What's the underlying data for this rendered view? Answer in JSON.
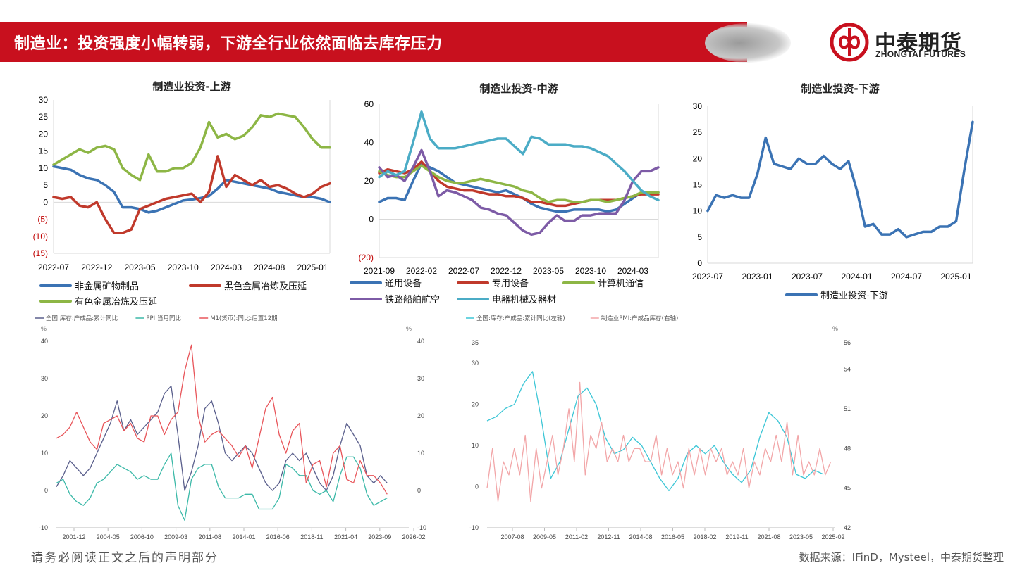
{
  "header": {
    "title": "制造业：投资强度小幅转弱，下游全行业依然面临去库存压力",
    "logo_cn": "中泰期货",
    "logo_en": "ZHONGTAI FUTURES",
    "accent_color": "#c8101e"
  },
  "footer": {
    "disclaimer": "请务必阅读正文之后的声明部分",
    "source": "数据来源：IFinD，Mysteel，中泰期货整理"
  },
  "chart_data": [
    {
      "id": "upstream",
      "type": "line",
      "title": "制造业投资-上游",
      "ylim": [
        -15,
        30
      ],
      "yticks": [
        30,
        25,
        20,
        15,
        10,
        5,
        0,
        -5,
        -10,
        -15
      ],
      "ytick_labels": [
        "30",
        "25",
        "20",
        "15",
        "10",
        "5",
        "0",
        "(5)",
        "(10)",
        "(15)"
      ],
      "negative_tick_color": "#c00000",
      "x_tick_labels": [
        "2022-07",
        "2022-12",
        "2023-05",
        "2023-10",
        "2024-03",
        "2024-08",
        "2025-01"
      ],
      "x_count": 33,
      "x_tick_index": [
        0,
        5,
        10,
        15,
        20,
        25,
        30
      ],
      "legend_position": "bottom",
      "series": [
        {
          "name": "非金属矿物制品",
          "color": "#3b73b4",
          "values": [
            10.5,
            10.0,
            9.5,
            8.0,
            7.0,
            6.5,
            5.0,
            3.0,
            -1.5,
            -1.5,
            -2.0,
            -3.0,
            -2.5,
            -1.5,
            -0.5,
            0.5,
            0.8,
            1.2,
            1.8,
            4.0,
            6.5,
            6.0,
            5.5,
            5.0,
            4.5,
            4.0,
            3.0,
            2.5,
            2.0,
            1.5,
            1.5,
            1.0,
            0.0
          ]
        },
        {
          "name": "黑色金属冶炼及压延",
          "color": "#c0392b",
          "values": [
            1.5,
            1.0,
            1.5,
            -1.0,
            -1.5,
            0.0,
            -5.0,
            -9.0,
            -9.0,
            -8.0,
            -2.0,
            -1.0,
            0.0,
            1.0,
            1.5,
            2.0,
            2.5,
            0.0,
            3.0,
            13.5,
            4.5,
            8.0,
            6.5,
            5.0,
            6.5,
            4.5,
            5.0,
            4.0,
            2.5,
            1.5,
            2.5,
            4.5,
            5.5
          ]
        },
        {
          "name": "有色金属冶炼及压延",
          "color": "#8db645",
          "values": [
            11.0,
            12.5,
            14.0,
            15.5,
            14.5,
            16.0,
            16.5,
            15.5,
            10.0,
            8.0,
            6.5,
            14.0,
            9.0,
            9.0,
            10.0,
            10.0,
            11.5,
            16.0,
            23.5,
            19.0,
            20.0,
            18.5,
            19.5,
            22.0,
            25.5,
            25.0,
            26.0,
            25.5,
            25.0,
            22.0,
            18.5,
            16.0,
            16.0
          ]
        }
      ]
    },
    {
      "id": "midstream",
      "type": "line",
      "title": "制造业投资-中游",
      "ylim": [
        -20,
        60
      ],
      "yticks": [
        60,
        40,
        20,
        0,
        -20
      ],
      "ytick_labels": [
        "60",
        "40",
        "20",
        "0",
        "(20)"
      ],
      "negative_tick_color": "#c00000",
      "x_tick_labels": [
        "2021-09",
        "2022-02",
        "2022-07",
        "2022-12",
        "2023-05",
        "2023-10",
        "2024-03"
      ],
      "x_count": 34,
      "x_tick_index": [
        0,
        5,
        10,
        15,
        20,
        25,
        30
      ],
      "legend_position": "bottom",
      "series": [
        {
          "name": "通用设备",
          "color": "#3b73b4",
          "values": [
            9,
            11,
            11,
            10,
            20,
            29,
            27,
            25,
            22,
            19,
            18,
            17,
            16,
            15,
            14,
            15,
            13,
            11,
            8,
            6,
            5,
            4,
            4,
            5,
            5,
            5,
            5,
            4,
            5,
            8,
            11,
            14,
            14,
            14
          ]
        },
        {
          "name": "专用设备",
          "color": "#c0392b",
          "values": [
            24,
            26,
            25,
            24,
            26,
            30,
            25,
            20,
            17,
            16,
            15,
            15,
            14,
            13,
            13,
            12,
            12,
            11,
            9,
            9,
            8,
            7,
            7,
            8,
            9,
            10,
            10,
            10,
            10,
            11,
            12,
            13,
            13,
            13
          ]
        },
        {
          "name": "计算机通信",
          "color": "#8db645",
          "values": [
            25,
            23,
            22,
            22,
            25,
            28,
            25,
            22,
            20,
            19,
            19,
            20,
            21,
            20,
            19,
            18,
            17,
            15,
            14,
            11,
            9,
            10,
            10,
            9,
            9,
            10,
            10,
            9,
            10,
            11,
            12,
            14,
            14,
            14
          ]
        },
        {
          "name": "铁路船舶航空",
          "color": "#7d5ba6",
          "values": [
            27,
            22,
            23,
            20,
            27,
            36,
            25,
            12,
            15,
            14,
            12,
            10,
            6,
            5,
            3,
            2,
            -2,
            -6,
            -8,
            -7,
            -2,
            2,
            -1,
            -1,
            2,
            2,
            3,
            3,
            3,
            10,
            20,
            25,
            25,
            27
          ]
        },
        {
          "name": "电器机械及器材",
          "color": "#4bacc6",
          "values": [
            22,
            25,
            23,
            25,
            40,
            56,
            42,
            37,
            37,
            37,
            38,
            39,
            40,
            41,
            42,
            42,
            38,
            34,
            43,
            42,
            39,
            39,
            39,
            38,
            38,
            37,
            35,
            33,
            29,
            25,
            20,
            15,
            12,
            10
          ]
        }
      ]
    },
    {
      "id": "downstream",
      "type": "line",
      "title": "制造业投资-下游",
      "ylim": [
        0,
        30
      ],
      "yticks": [
        30,
        25,
        20,
        15,
        10,
        5,
        0
      ],
      "ytick_labels": [
        "30",
        "25",
        "20",
        "15",
        "10",
        "5",
        "0"
      ],
      "x_tick_labels": [
        "2022-07",
        "2023-01",
        "2023-07",
        "2024-01",
        "2024-07",
        "2025-01"
      ],
      "x_count": 33,
      "x_tick_index": [
        0,
        6,
        12,
        18,
        24,
        30
      ],
      "legend_position": "bottom",
      "series": [
        {
          "name": "制造业投资-下游",
          "color": "#3b73b4",
          "values": [
            10,
            13,
            12.5,
            13,
            12.5,
            12.5,
            17,
            24,
            19,
            18.5,
            18,
            20,
            19,
            19,
            20.5,
            19,
            18,
            19.5,
            14,
            7,
            7.5,
            5.5,
            5.5,
            6.5,
            5,
            5.5,
            6,
            6,
            7,
            7,
            8,
            18,
            27
          ]
        }
      ]
    },
    {
      "id": "inventory-ppi-m1",
      "type": "line",
      "title": "",
      "ylabel_left": "%",
      "ylabel_right": "%",
      "ylim": [
        -10,
        40
      ],
      "yticks_left": [
        40,
        30,
        20,
        10,
        0,
        -10
      ],
      "yticks_right": [
        40,
        30,
        20,
        10,
        0,
        -10
      ],
      "x_tick_labels": [
        "2001-12",
        "2004-05",
        "2006-10",
        "2009-03",
        "2011-08",
        "2014-01",
        "2016-06",
        "2018-11",
        "2021-04",
        "2023-09",
        "2026-02"
      ],
      "x_range_years": [
        2000.0,
        2026.1
      ],
      "legend_position": "top-left",
      "series": [
        {
          "name": "全国:库存:产成品:累计同比",
          "color": "#5a5f8c",
          "x": [
            2000.0,
            2000.5,
            2001.0,
            2001.5,
            2002.0,
            2002.5,
            2003.0,
            2003.5,
            2004.0,
            2004.5,
            2005.0,
            2005.5,
            2006.0,
            2006.5,
            2007.0,
            2007.5,
            2008.0,
            2008.5,
            2009.0,
            2009.5,
            2010.0,
            2010.5,
            2011.0,
            2011.5,
            2012.0,
            2012.5,
            2013.0,
            2013.5,
            2014.0,
            2014.5,
            2015.0,
            2015.5,
            2016.0,
            2016.5,
            2017.0,
            2017.5,
            2018.0,
            2018.5,
            2019.0,
            2019.5,
            2020.0,
            2020.5,
            2021.0,
            2021.5,
            2022.0,
            2022.5,
            2023.0,
            2023.5,
            2024.0,
            2024.5
          ],
          "values": [
            1,
            4,
            8,
            6,
            4,
            6,
            10,
            14,
            18,
            24,
            16,
            19,
            15,
            17,
            19,
            21,
            26,
            28,
            15,
            0,
            5,
            12,
            22,
            24,
            18,
            10,
            8,
            10,
            12,
            10,
            6,
            2,
            0,
            2,
            8,
            10,
            8,
            10,
            6,
            2,
            0,
            4,
            12,
            18,
            15,
            12,
            4,
            2,
            4,
            2
          ]
        },
        {
          "name": "PPI:当月同比",
          "color": "#3cb9a8",
          "x": [
            2000.0,
            2000.5,
            2001.0,
            2001.5,
            2002.0,
            2002.5,
            2003.0,
            2003.5,
            2004.0,
            2004.5,
            2005.0,
            2005.5,
            2006.0,
            2006.5,
            2007.0,
            2007.5,
            2008.0,
            2008.5,
            2009.0,
            2009.5,
            2010.0,
            2010.5,
            2011.0,
            2011.5,
            2012.0,
            2012.5,
            2013.0,
            2013.5,
            2014.0,
            2014.5,
            2015.0,
            2015.5,
            2016.0,
            2016.5,
            2017.0,
            2017.5,
            2018.0,
            2018.5,
            2019.0,
            2019.5,
            2020.0,
            2020.5,
            2021.0,
            2021.5,
            2022.0,
            2022.5,
            2023.0,
            2023.5,
            2024.0,
            2024.5
          ],
          "values": [
            2,
            3,
            -1,
            -3,
            -4,
            -2,
            2,
            3,
            5,
            7,
            6,
            5,
            3,
            4,
            3,
            3,
            7,
            10,
            -4,
            -8,
            3,
            6,
            7,
            7,
            1,
            -2,
            -2,
            -2,
            -1,
            -1,
            -5,
            -5,
            -5,
            -2,
            7,
            6,
            4,
            4,
            0,
            -1,
            0,
            -3,
            4,
            9,
            9,
            6,
            -1,
            -4,
            -3,
            -2
          ]
        },
        {
          "name": "M1(货币):同比:后置12期",
          "color": "#e8555a",
          "x": [
            2000.0,
            2000.5,
            2001.0,
            2001.5,
            2002.0,
            2002.5,
            2003.0,
            2003.5,
            2004.0,
            2004.5,
            2005.0,
            2005.5,
            2006.0,
            2006.5,
            2007.0,
            2007.5,
            2008.0,
            2008.5,
            2009.0,
            2009.5,
            2010.0,
            2010.5,
            2011.0,
            2011.5,
            2012.0,
            2012.5,
            2013.0,
            2013.5,
            2014.0,
            2014.5,
            2015.0,
            2015.5,
            2016.0,
            2016.5,
            2017.0,
            2017.5,
            2018.0,
            2018.5,
            2019.0,
            2019.5,
            2020.0,
            2020.5,
            2021.0,
            2021.5,
            2022.0,
            2022.5,
            2023.0,
            2023.5,
            2024.0,
            2024.5
          ],
          "values": [
            14,
            15,
            17,
            21,
            17,
            13,
            11,
            18,
            19,
            20,
            16,
            18,
            14,
            13,
            20,
            20,
            15,
            19,
            21,
            32,
            39,
            20,
            13,
            15,
            16,
            14,
            12,
            9,
            12,
            6,
            14,
            22,
            25,
            15,
            10,
            16,
            18,
            2,
            7,
            8,
            1,
            10,
            12,
            3,
            2,
            8,
            4,
            4,
            2,
            -1
          ]
        }
      ]
    },
    {
      "id": "inventory-pmi",
      "type": "line",
      "title": "",
      "ylabel_right": "%",
      "ylim_left": [
        -10,
        35
      ],
      "ylim_right": [
        42,
        56
      ],
      "yticks_left": [
        35,
        30,
        20,
        10,
        0,
        -10
      ],
      "yticks_right": [
        56,
        54,
        51,
        48,
        45,
        42
      ],
      "x_tick_labels": [
        "2007-08",
        "2009-05",
        "2011-02",
        "2012-11",
        "2014-08",
        "2016-05",
        "2018-02",
        "2019-11",
        "2021-08",
        "2023-05",
        "2025-02"
      ],
      "x_range_years": [
        2006.0,
        2025.15
      ],
      "legend_position": "top-left",
      "series": [
        {
          "name": "全国:库存:产成品:累计同比(左轴)",
          "color": "#3cc6d6",
          "x": [
            2006.0,
            2006.5,
            2007.0,
            2007.5,
            2008.0,
            2008.5,
            2009.0,
            2009.5,
            2010.0,
            2010.5,
            2011.0,
            2011.5,
            2012.0,
            2012.5,
            2013.0,
            2013.5,
            2014.0,
            2014.5,
            2015.0,
            2015.5,
            2016.0,
            2016.5,
            2017.0,
            2017.5,
            2018.0,
            2018.5,
            2019.0,
            2019.5,
            2020.0,
            2020.5,
            2021.0,
            2021.5,
            2022.0,
            2022.5,
            2023.0,
            2023.5,
            2024.0,
            2024.5
          ],
          "values": [
            16,
            17,
            19,
            20,
            25,
            28,
            16,
            2,
            6,
            14,
            22,
            24,
            20,
            12,
            8,
            9,
            12,
            10,
            6,
            2,
            -1,
            2,
            8,
            10,
            8,
            10,
            6,
            3,
            1,
            4,
            12,
            18,
            16,
            12,
            3,
            2,
            4,
            3
          ]
        },
        {
          "name": "制造业PMI:产成品库存(右轴)",
          "color": "#f2a6a8",
          "x": [
            2006.0,
            2006.3,
            2006.6,
            2006.9,
            2007.2,
            2007.5,
            2007.8,
            2008.1,
            2008.4,
            2008.7,
            2009.0,
            2009.3,
            2009.6,
            2009.9,
            2010.2,
            2010.5,
            2010.8,
            2011.1,
            2011.4,
            2011.7,
            2012.0,
            2012.3,
            2012.6,
            2012.9,
            2013.2,
            2013.5,
            2013.8,
            2014.1,
            2014.4,
            2014.7,
            2015.0,
            2015.3,
            2015.6,
            2015.9,
            2016.2,
            2016.5,
            2016.8,
            2017.1,
            2017.4,
            2017.7,
            2018.0,
            2018.3,
            2018.6,
            2018.9,
            2019.2,
            2019.5,
            2019.8,
            2020.1,
            2020.4,
            2020.7,
            2021.0,
            2021.3,
            2021.6,
            2021.9,
            2022.2,
            2022.5,
            2022.8,
            2023.1,
            2023.4,
            2023.7,
            2024.0,
            2024.3,
            2024.6,
            2024.9
          ],
          "values": [
            45,
            48,
            44,
            47,
            46,
            48,
            46,
            49,
            44,
            48,
            45,
            47,
            49,
            46,
            48,
            51,
            47,
            53,
            46,
            49,
            48,
            50,
            47,
            48,
            47,
            49,
            47,
            48,
            48,
            47,
            47,
            49,
            46,
            48,
            46,
            47,
            45,
            48,
            46,
            48,
            46,
            48,
            47,
            48,
            46,
            47,
            46,
            48,
            45,
            47,
            46,
            48,
            47,
            49,
            47,
            50,
            46,
            49,
            46,
            47,
            46,
            48,
            46,
            47
          ]
        }
      ]
    }
  ]
}
